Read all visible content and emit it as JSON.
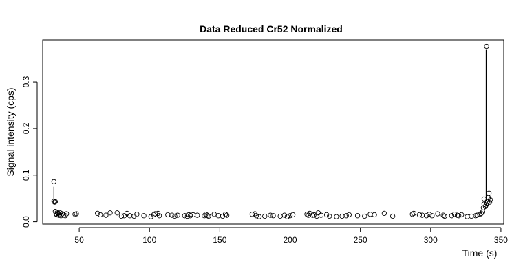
{
  "chart_data": {
    "type": "scatter",
    "title": "Data Reduced Cr52 Normalized",
    "xlabel": "Time (s)",
    "ylabel": "Signal intensity (cps)",
    "xlim": [
      24,
      352
    ],
    "ylim": [
      -0.005,
      0.39
    ],
    "x_ticks": [
      50,
      100,
      150,
      200,
      250,
      300,
      350
    ],
    "y_ticks": [
      0.0,
      0.1,
      0.2,
      0.3
    ],
    "x_tick_labels": [
      "50",
      "100",
      "150",
      "200",
      "250",
      "300",
      "350"
    ],
    "y_tick_labels": [
      "0.0",
      "0.1",
      "0.2",
      "0.3"
    ],
    "grid": false,
    "marker": "open-circle",
    "colors": {
      "points": "#000000",
      "axes": "#000000",
      "background": "#ffffff"
    },
    "segments": [
      {
        "x": [
          32,
          32
        ],
        "y": [
          0.042,
          0.075
        ]
      },
      {
        "x": [
          339.5,
          339.5
        ],
        "y": [
          0.045,
          0.37
        ]
      }
    ],
    "points": [
      {
        "x": 32,
        "y": 0.086
      },
      {
        "x": 32,
        "y": 0.044
      },
      {
        "x": 32.5,
        "y": 0.042
      },
      {
        "x": 33,
        "y": 0.043
      },
      {
        "x": 33,
        "y": 0.022
      },
      {
        "x": 33.5,
        "y": 0.017
      },
      {
        "x": 34,
        "y": 0.015
      },
      {
        "x": 34.5,
        "y": 0.02
      },
      {
        "x": 35,
        "y": 0.018
      },
      {
        "x": 35.5,
        "y": 0.014
      },
      {
        "x": 36,
        "y": 0.016
      },
      {
        "x": 36.5,
        "y": 0.019
      },
      {
        "x": 37,
        "y": 0.013
      },
      {
        "x": 38,
        "y": 0.017
      },
      {
        "x": 39,
        "y": 0.015
      },
      {
        "x": 40,
        "y": 0.013
      },
      {
        "x": 41,
        "y": 0.017
      },
      {
        "x": 47,
        "y": 0.016
      },
      {
        "x": 48,
        "y": 0.017
      },
      {
        "x": 63,
        "y": 0.018
      },
      {
        "x": 65,
        "y": 0.015
      },
      {
        "x": 69,
        "y": 0.014
      },
      {
        "x": 72,
        "y": 0.019
      },
      {
        "x": 77,
        "y": 0.019
      },
      {
        "x": 80,
        "y": 0.012
      },
      {
        "x": 82,
        "y": 0.013
      },
      {
        "x": 84,
        "y": 0.018
      },
      {
        "x": 86,
        "y": 0.013
      },
      {
        "x": 89,
        "y": 0.012
      },
      {
        "x": 91,
        "y": 0.016
      },
      {
        "x": 96,
        "y": 0.013
      },
      {
        "x": 101,
        "y": 0.011
      },
      {
        "x": 103,
        "y": 0.015
      },
      {
        "x": 104,
        "y": 0.017
      },
      {
        "x": 106,
        "y": 0.018
      },
      {
        "x": 107,
        "y": 0.013
      },
      {
        "x": 113,
        "y": 0.015
      },
      {
        "x": 116,
        "y": 0.014
      },
      {
        "x": 118,
        "y": 0.012
      },
      {
        "x": 120,
        "y": 0.014
      },
      {
        "x": 125,
        "y": 0.013
      },
      {
        "x": 127,
        "y": 0.012
      },
      {
        "x": 128,
        "y": 0.015
      },
      {
        "x": 129,
        "y": 0.013
      },
      {
        "x": 131,
        "y": 0.015
      },
      {
        "x": 134,
        "y": 0.014
      },
      {
        "x": 139,
        "y": 0.013
      },
      {
        "x": 140,
        "y": 0.016
      },
      {
        "x": 141,
        "y": 0.014
      },
      {
        "x": 142,
        "y": 0.012
      },
      {
        "x": 146,
        "y": 0.016
      },
      {
        "x": 149,
        "y": 0.013
      },
      {
        "x": 152,
        "y": 0.012
      },
      {
        "x": 154,
        "y": 0.016
      },
      {
        "x": 155,
        "y": 0.014
      },
      {
        "x": 173,
        "y": 0.016
      },
      {
        "x": 175,
        "y": 0.017
      },
      {
        "x": 176,
        "y": 0.013
      },
      {
        "x": 178,
        "y": 0.011
      },
      {
        "x": 182,
        "y": 0.012
      },
      {
        "x": 186,
        "y": 0.014
      },
      {
        "x": 188,
        "y": 0.013
      },
      {
        "x": 193,
        "y": 0.012
      },
      {
        "x": 196,
        "y": 0.014
      },
      {
        "x": 198,
        "y": 0.011
      },
      {
        "x": 200,
        "y": 0.013
      },
      {
        "x": 202,
        "y": 0.015
      },
      {
        "x": 212,
        "y": 0.016
      },
      {
        "x": 213,
        "y": 0.014
      },
      {
        "x": 214,
        "y": 0.018
      },
      {
        "x": 216,
        "y": 0.014
      },
      {
        "x": 217,
        "y": 0.015
      },
      {
        "x": 219,
        "y": 0.012
      },
      {
        "x": 220,
        "y": 0.019
      },
      {
        "x": 222,
        "y": 0.014
      },
      {
        "x": 226,
        "y": 0.015
      },
      {
        "x": 228,
        "y": 0.012
      },
      {
        "x": 233,
        "y": 0.011
      },
      {
        "x": 237,
        "y": 0.012
      },
      {
        "x": 240,
        "y": 0.013
      },
      {
        "x": 242,
        "y": 0.015
      },
      {
        "x": 248,
        "y": 0.013
      },
      {
        "x": 253,
        "y": 0.012
      },
      {
        "x": 257,
        "y": 0.016
      },
      {
        "x": 260,
        "y": 0.015
      },
      {
        "x": 267,
        "y": 0.018
      },
      {
        "x": 273,
        "y": 0.012
      },
      {
        "x": 287,
        "y": 0.016
      },
      {
        "x": 288,
        "y": 0.018
      },
      {
        "x": 292,
        "y": 0.015
      },
      {
        "x": 294,
        "y": 0.014
      },
      {
        "x": 297,
        "y": 0.013
      },
      {
        "x": 299,
        "y": 0.016
      },
      {
        "x": 301,
        "y": 0.013
      },
      {
        "x": 305,
        "y": 0.017
      },
      {
        "x": 309,
        "y": 0.014
      },
      {
        "x": 310,
        "y": 0.012
      },
      {
        "x": 315,
        "y": 0.013
      },
      {
        "x": 317,
        "y": 0.016
      },
      {
        "x": 319,
        "y": 0.014
      },
      {
        "x": 320,
        "y": 0.013
      },
      {
        "x": 322,
        "y": 0.015
      },
      {
        "x": 326,
        "y": 0.011
      },
      {
        "x": 329,
        "y": 0.012
      },
      {
        "x": 332,
        "y": 0.013
      },
      {
        "x": 333,
        "y": 0.014
      },
      {
        "x": 335,
        "y": 0.016
      },
      {
        "x": 336,
        "y": 0.018
      },
      {
        "x": 337,
        "y": 0.021
      },
      {
        "x": 337.5,
        "y": 0.03
      },
      {
        "x": 338,
        "y": 0.038
      },
      {
        "x": 338,
        "y": 0.049
      },
      {
        "x": 339,
        "y": 0.033
      },
      {
        "x": 339.5,
        "y": 0.036
      },
      {
        "x": 339.8,
        "y": 0.376
      },
      {
        "x": 340,
        "y": 0.04
      },
      {
        "x": 340.5,
        "y": 0.044
      },
      {
        "x": 341,
        "y": 0.052
      },
      {
        "x": 341.5,
        "y": 0.061
      },
      {
        "x": 342,
        "y": 0.042
      },
      {
        "x": 342.5,
        "y": 0.047
      }
    ]
  }
}
